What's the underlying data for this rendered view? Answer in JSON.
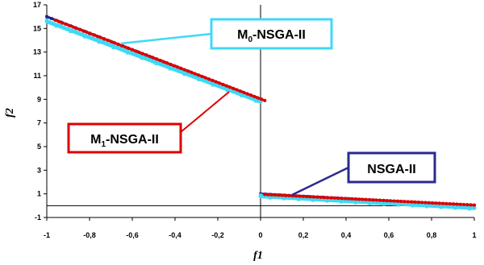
{
  "chart_data": {
    "type": "scatter",
    "title": "",
    "xlabel": "f1",
    "ylabel": "f2",
    "xlim": [
      -1,
      1
    ],
    "ylim": [
      -1,
      17
    ],
    "x_ticks": [
      -1,
      -0.8,
      -0.6,
      -0.4,
      -0.2,
      0,
      0.2,
      0.4,
      0.6,
      0.8,
      1
    ],
    "x_tick_labels": [
      "-1",
      "-0,8",
      "-0,6",
      "-0,4",
      "-0,2",
      "0",
      "0,2",
      "0,4",
      "0,6",
      "0,8",
      "1"
    ],
    "y_ticks": [
      -1,
      1,
      3,
      5,
      7,
      9,
      11,
      13,
      15,
      17
    ],
    "y_tick_labels": [
      "-1",
      "1",
      "3",
      "5",
      "7",
      "9",
      "11",
      "13",
      "15",
      "17"
    ],
    "grid": false,
    "legend": "none (callout boxes with leader lines)",
    "series": [
      {
        "name": "NSGA-II",
        "color": "#1f1f8a",
        "segments": [
          {
            "x": [
              -1.0,
              0.0
            ],
            "y": [
              16.0,
              9.0
            ]
          },
          {
            "x": [
              0.0,
              1.0
            ],
            "y": [
              1.0,
              0.0
            ]
          }
        ]
      },
      {
        "name": "M0-NSGA-II",
        "color": "#3fd9f5",
        "segments": [
          {
            "x": [
              -1.0,
              0.0
            ],
            "y": [
              15.6,
              8.8
            ]
          },
          {
            "x": [
              0.0,
              1.0
            ],
            "y": [
              0.8,
              -0.2
            ]
          }
        ]
      },
      {
        "name": "M1-NSGA-II",
        "color": "#dd0000",
        "segments": [
          {
            "x": [
              -0.96,
              0.02
            ],
            "y": [
              15.7,
              8.9
            ]
          },
          {
            "x": [
              0.02,
              1.0
            ],
            "y": [
              0.95,
              0.05
            ]
          }
        ]
      }
    ]
  },
  "callouts": {
    "m0": {
      "prefix": "M",
      "sub": "0",
      "suffix": "-NSGA-II",
      "color": "#3fd9f5"
    },
    "m1": {
      "prefix": "M",
      "sub": "1",
      "suffix": "-NSGA-II",
      "color": "#dd0000"
    },
    "nsga": {
      "prefix": "NSGA-II",
      "sub": "",
      "suffix": "",
      "color": "#2a2a8f"
    }
  }
}
